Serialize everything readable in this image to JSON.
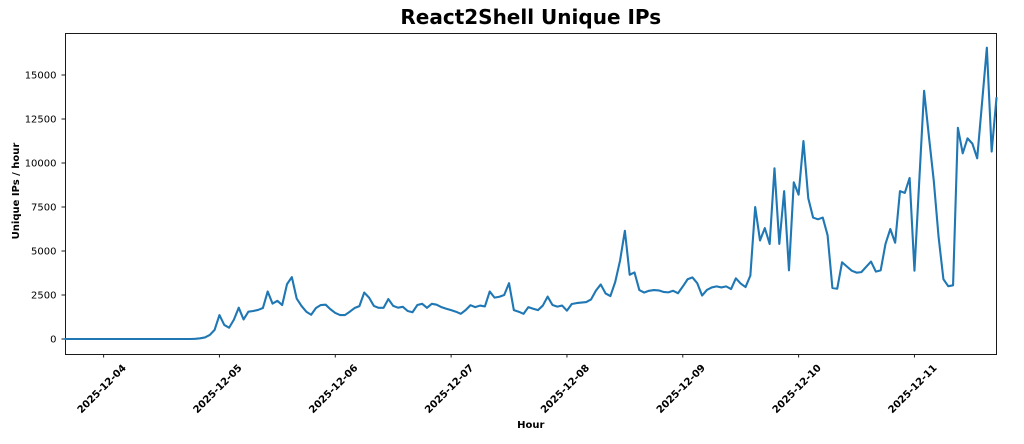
{
  "chart_data": {
    "type": "line",
    "title": "React2Shell Unique IPs",
    "xlabel": "Hour",
    "ylabel": "Unique IPs / hour",
    "series": [
      {
        "name": "Unique IPs per hour",
        "start": "2025-12-03 16:00",
        "freq": "1 hour",
        "values": [
          0,
          0,
          0,
          0,
          0,
          0,
          0,
          0,
          0,
          0,
          0,
          0,
          0,
          0,
          0,
          0,
          0,
          0,
          0,
          0,
          0,
          0,
          0,
          0,
          0,
          0,
          0,
          10,
          40,
          90,
          230,
          520,
          1360,
          800,
          640,
          1100,
          1780,
          1110,
          1550,
          1590,
          1650,
          1760,
          2700,
          2010,
          2170,
          1930,
          3120,
          3515,
          2300,
          1880,
          1550,
          1380,
          1760,
          1930,
          1950,
          1690,
          1480,
          1360,
          1360,
          1550,
          1760,
          1870,
          2640,
          2350,
          1880,
          1770,
          1770,
          2270,
          1880,
          1780,
          1830,
          1590,
          1520,
          1930,
          2000,
          1770,
          2000,
          1950,
          1810,
          1720,
          1640,
          1550,
          1430,
          1640,
          1920,
          1810,
          1900,
          1850,
          2700,
          2350,
          2400,
          2500,
          3170,
          1640,
          1550,
          1430,
          1810,
          1720,
          1640,
          1900,
          2410,
          1930,
          1840,
          1900,
          1610,
          1990,
          2040,
          2070,
          2100,
          2250,
          2750,
          3100,
          2590,
          2440,
          3240,
          4450,
          6150,
          3650,
          3780,
          2780,
          2640,
          2740,
          2780,
          2760,
          2675,
          2650,
          2740,
          2600,
          2980,
          3395,
          3500,
          3170,
          2470,
          2790,
          2930,
          2990,
          2930,
          2990,
          2840,
          3450,
          3150,
          2950,
          3600,
          7500,
          5600,
          6300,
          5400,
          9700,
          5400,
          8400,
          3900,
          8900,
          8200,
          11250,
          8000,
          6900,
          6800,
          6900,
          5900,
          2900,
          2860,
          4360,
          4120,
          3880,
          3770,
          3800,
          4100,
          4400,
          3830,
          3900,
          5400,
          6250,
          5470,
          8400,
          8300,
          9150,
          3880,
          9000,
          14100,
          11500,
          9000,
          5800,
          3400,
          3000,
          3050,
          12000,
          10550,
          11400,
          11100,
          10270,
          13400,
          16550,
          10650,
          13700
        ]
      }
    ],
    "x_tick_labels": [
      "2025-12-04",
      "2025-12-05",
      "2025-12-06",
      "2025-12-07",
      "2025-12-08",
      "2025-12-09",
      "2025-12-10",
      "2025-12-11"
    ],
    "x_tick_value_indices": [
      8,
      32,
      56,
      80,
      104,
      128,
      152,
      176
    ],
    "y_tick_labels": [
      "0",
      "2500",
      "5000",
      "7500",
      "10000",
      "12500",
      "15000"
    ],
    "y_tick_values": [
      0,
      2500,
      5000,
      7500,
      10000,
      12500,
      15000
    ],
    "ylim": [
      -852,
      17386
    ],
    "grid": false,
    "legend_shown": false,
    "line_color": "#1f77b4",
    "line_width": 2.1
  }
}
